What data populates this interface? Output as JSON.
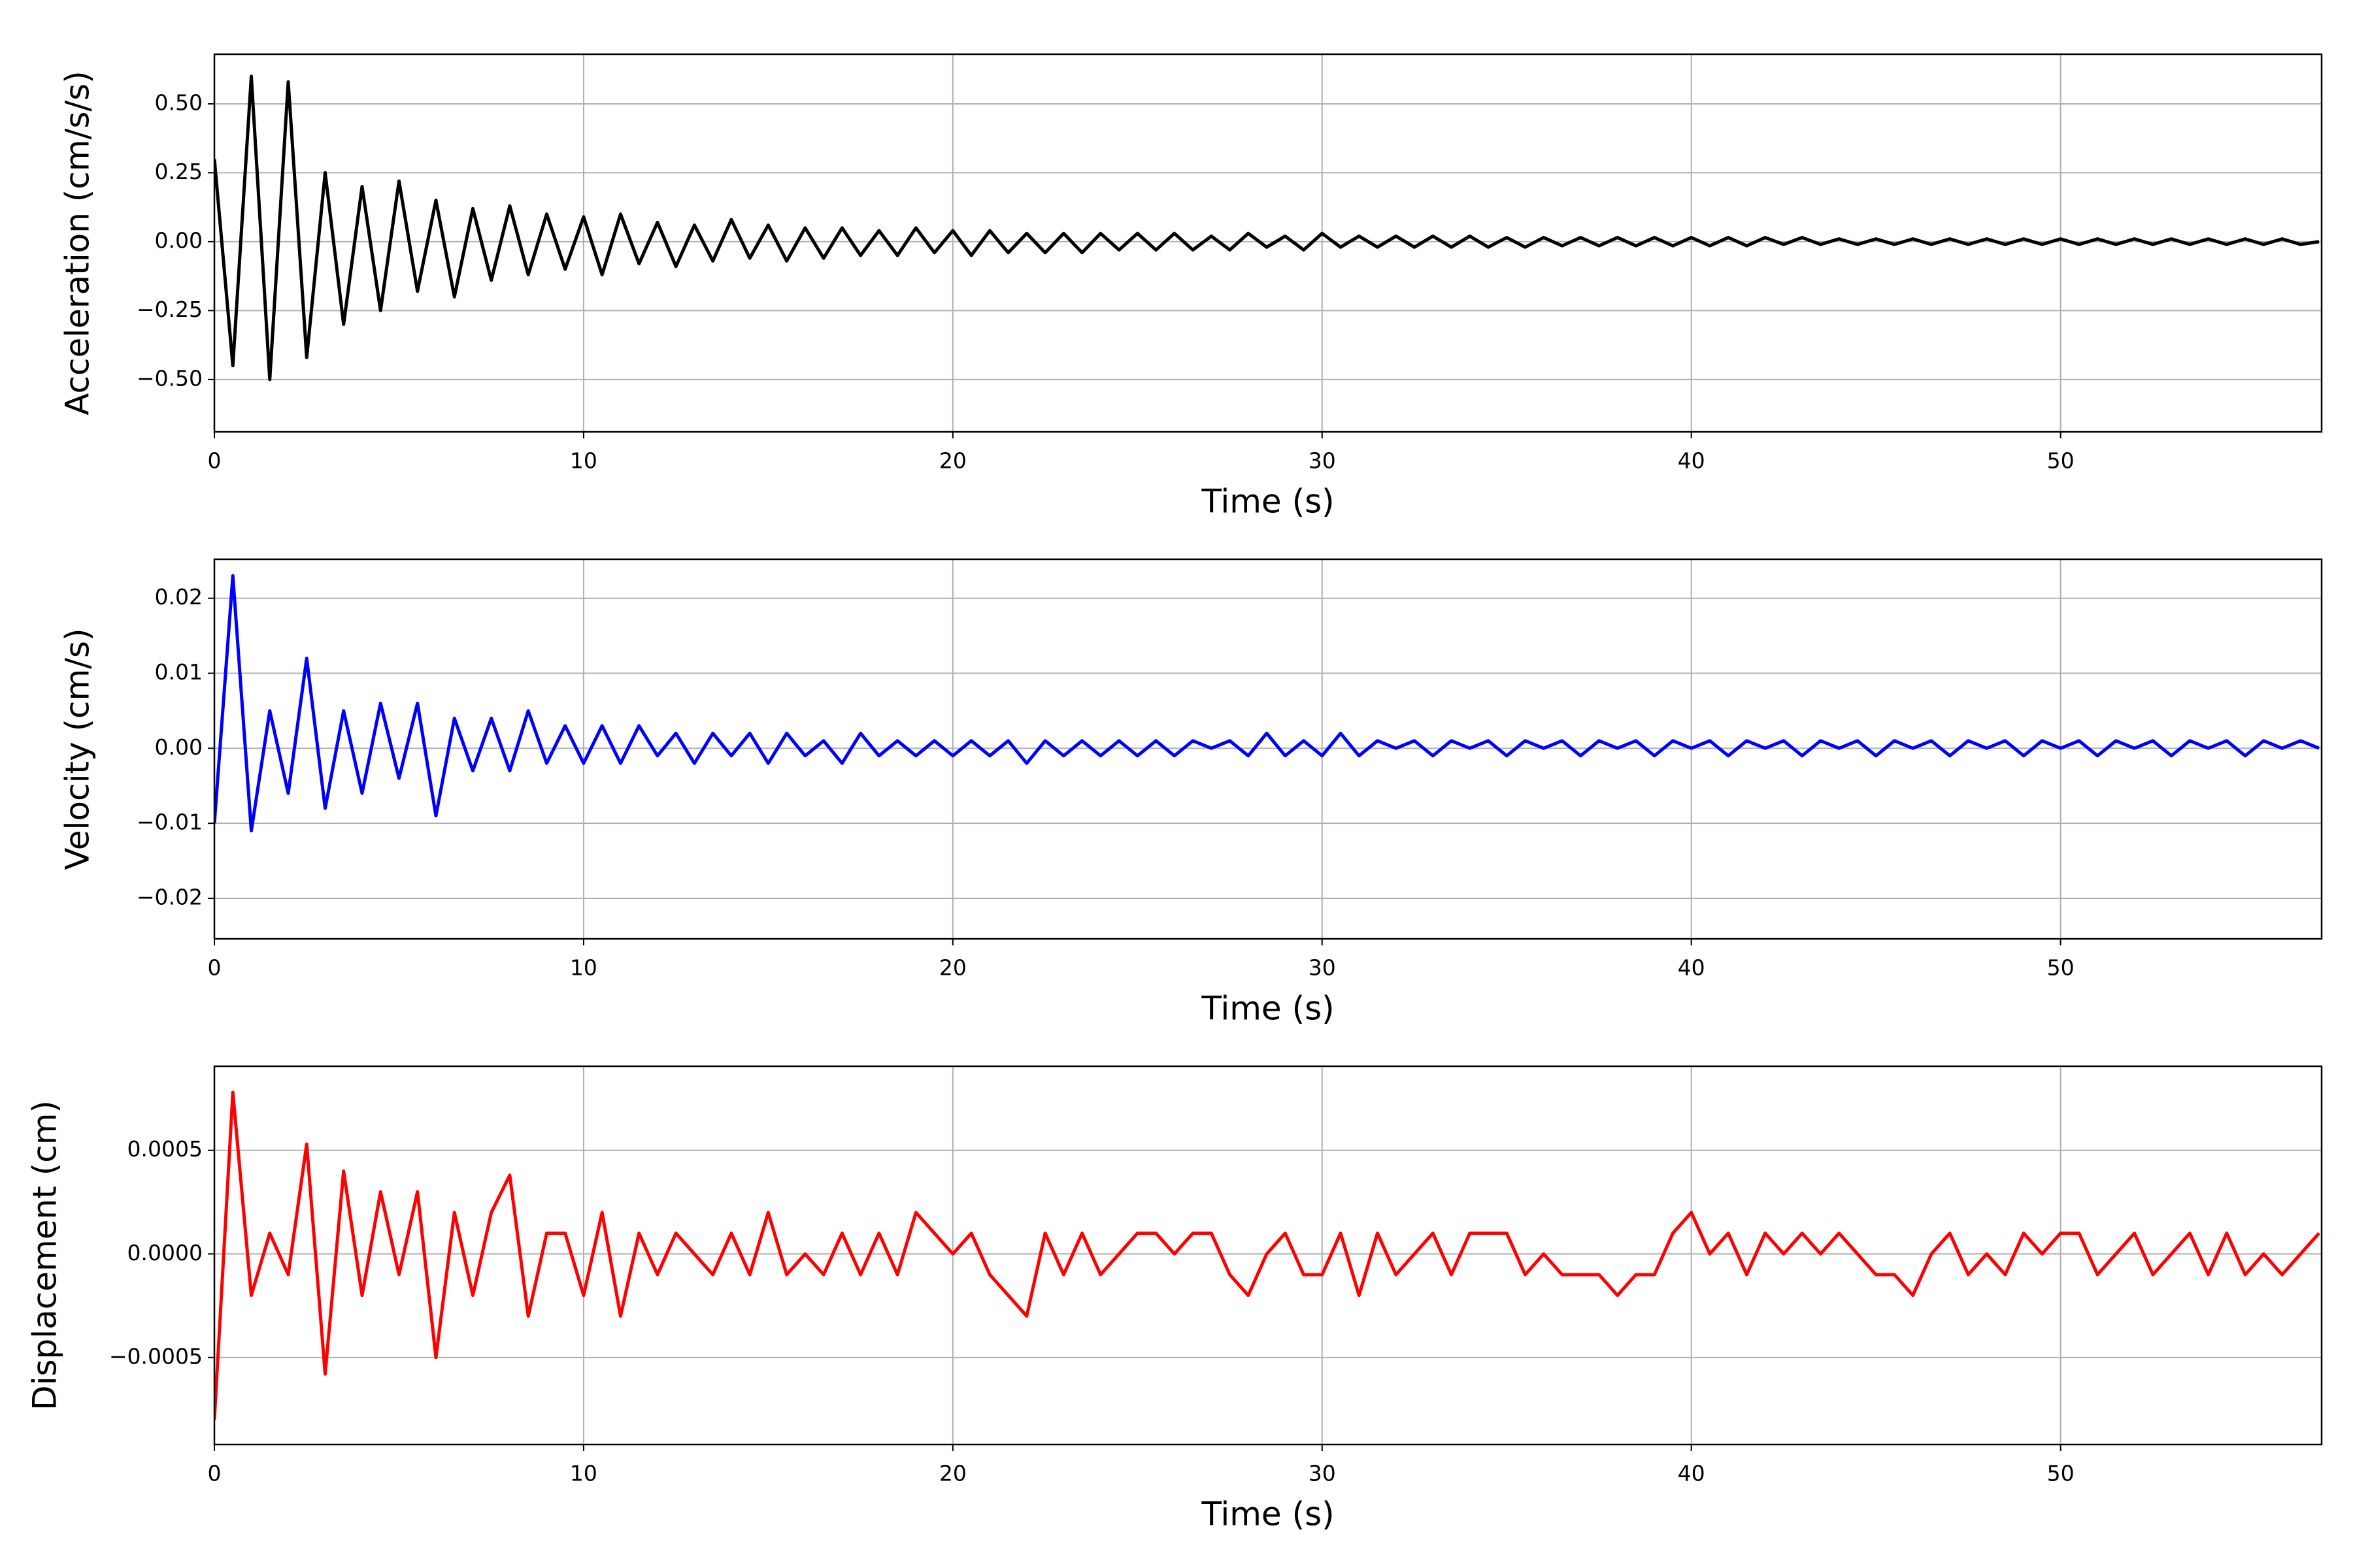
{
  "chart_data": [
    {
      "type": "line",
      "xlabel": "Time (s)",
      "ylabel": "Acceleration (cm/s/s)",
      "grid": true,
      "xlim": [
        0,
        57.07
      ],
      "xticks": [
        0,
        10,
        20,
        30,
        40,
        50
      ],
      "ylim": [
        -0.69,
        0.68
      ],
      "yticks": [
        {
          "value": -0.5,
          "label": "−0.50"
        },
        {
          "value": -0.25,
          "label": "−0.25"
        },
        {
          "value": 0,
          "label": "0.00"
        },
        {
          "value": 0.25,
          "label": "0.25"
        },
        {
          "value": 0.5,
          "label": "0.50"
        }
      ],
      "x": [
        0,
        0.5,
        1,
        1.5,
        2,
        2.5,
        3,
        3.5,
        4,
        4.5,
        5,
        5.5,
        6,
        6.5,
        7,
        7.5,
        8,
        8.5,
        9,
        9.5,
        10,
        10.5,
        11,
        11.5,
        12,
        12.5,
        13,
        13.5,
        14,
        14.5,
        15,
        15.5,
        16,
        16.5,
        17,
        17.5,
        18,
        18.5,
        19,
        19.5,
        20,
        20.5,
        21,
        21.5,
        22,
        22.5,
        23,
        23.5,
        24,
        24.5,
        25,
        25.5,
        26,
        26.5,
        27,
        27.5,
        28,
        28.5,
        29,
        29.5,
        30,
        30.5,
        31,
        31.5,
        32,
        32.5,
        33,
        33.5,
        34,
        34.5,
        35,
        35.5,
        36,
        36.5,
        37,
        37.5,
        38,
        38.5,
        39,
        39.5,
        40,
        40.5,
        41,
        41.5,
        42,
        42.5,
        43,
        43.5,
        44,
        44.5,
        45,
        45.5,
        46,
        46.5,
        47,
        47.5,
        48,
        48.5,
        49,
        49.5,
        50,
        50.5,
        51,
        51.5,
        52,
        52.5,
        53,
        53.5,
        54,
        54.5,
        55,
        55.5,
        56,
        56.5,
        57
      ],
      "series": [
        {
          "color": "#000000",
          "values": [
            0.3,
            -0.45,
            0.6,
            -0.5,
            0.58,
            -0.42,
            0.25,
            -0.3,
            0.2,
            -0.25,
            0.22,
            -0.18,
            0.15,
            -0.2,
            0.12,
            -0.14,
            0.13,
            -0.12,
            0.1,
            -0.1,
            0.09,
            -0.12,
            0.1,
            -0.08,
            0.07,
            -0.09,
            0.06,
            -0.07,
            0.08,
            -0.06,
            0.06,
            -0.07,
            0.05,
            -0.06,
            0.05,
            -0.05,
            0.04,
            -0.05,
            0.05,
            -0.04,
            0.04,
            -0.05,
            0.04,
            -0.04,
            0.03,
            -0.04,
            0.03,
            -0.04,
            0.03,
            -0.03,
            0.03,
            -0.03,
            0.03,
            -0.03,
            0.02,
            -0.03,
            0.03,
            -0.02,
            0.02,
            -0.03,
            0.03,
            -0.02,
            0.02,
            -0.02,
            0.02,
            -0.02,
            0.02,
            -0.02,
            0.02,
            -0.02,
            0.015,
            -0.02,
            0.015,
            -0.015,
            0.015,
            -0.015,
            0.015,
            -0.015,
            0.015,
            -0.015,
            0.015,
            -0.015,
            0.015,
            -0.015,
            0.015,
            -0.01,
            0.015,
            -0.01,
            0.01,
            -0.01,
            0.01,
            -0.01,
            0.01,
            -0.01,
            0.01,
            -0.01,
            0.01,
            -0.01,
            0.01,
            -0.01,
            0.01,
            -0.01,
            0.01,
            -0.01,
            0.01,
            -0.01,
            0.01,
            -0.01,
            0.01,
            -0.01,
            0.01,
            -0.01,
            0.01,
            -0.01,
            0
          ]
        }
      ]
    },
    {
      "type": "line",
      "xlabel": "Time (s)",
      "ylabel": "Velocity (cm/s)",
      "grid": true,
      "xlim": [
        0,
        57.07
      ],
      "xticks": [
        0,
        10,
        20,
        30,
        40,
        50
      ],
      "ylim": [
        -0.0254,
        0.0252
      ],
      "yticks": [
        {
          "value": -0.02,
          "label": "−0.02"
        },
        {
          "value": -0.01,
          "label": "−0.01"
        },
        {
          "value": 0,
          "label": "0.00"
        },
        0.01,
        0.02
      ],
      "x": [
        0,
        0.5,
        1,
        1.5,
        2,
        2.5,
        3,
        3.5,
        4,
        4.5,
        5,
        5.5,
        6,
        6.5,
        7,
        7.5,
        8,
        8.5,
        9,
        9.5,
        10,
        10.5,
        11,
        11.5,
        12,
        12.5,
        13,
        13.5,
        14,
        14.5,
        15,
        15.5,
        16,
        16.5,
        17,
        17.5,
        18,
        18.5,
        19,
        19.5,
        20,
        20.5,
        21,
        21.5,
        22,
        22.5,
        23,
        23.5,
        24,
        24.5,
        25,
        25.5,
        26,
        26.5,
        27,
        27.5,
        28,
        28.5,
        29,
        29.5,
        30,
        30.5,
        31,
        31.5,
        32,
        32.5,
        33,
        33.5,
        34,
        34.5,
        35,
        35.5,
        36,
        36.5,
        37,
        37.5,
        38,
        38.5,
        39,
        39.5,
        40,
        40.5,
        41,
        41.5,
        42,
        42.5,
        43,
        43.5,
        44,
        44.5,
        45,
        45.5,
        46,
        46.5,
        47,
        47.5,
        48,
        48.5,
        49,
        49.5,
        50,
        50.5,
        51,
        51.5,
        52,
        52.5,
        53,
        53.5,
        54,
        54.5,
        55,
        55.5,
        56,
        56.5,
        57
      ],
      "series": [
        {
          "color": "#0000ff",
          "values": [
            -0.01,
            0.023,
            -0.011,
            0.005,
            -0.006,
            0.012,
            -0.008,
            0.005,
            -0.006,
            0.006,
            -0.004,
            0.006,
            -0.009,
            0.004,
            -0.003,
            0.004,
            -0.003,
            0.005,
            -0.002,
            0.003,
            -0.002,
            0.003,
            -0.002,
            0.003,
            -0.001,
            0.002,
            -0.002,
            0.002,
            -0.001,
            0.002,
            -0.002,
            0.002,
            -0.001,
            0.001,
            -0.002,
            0.002,
            -0.001,
            0.001,
            -0.001,
            0.001,
            -0.001,
            0.001,
            -0.001,
            0.001,
            -0.002,
            0.001,
            -0.001,
            0.001,
            -0.001,
            0.001,
            -0.001,
            0.001,
            -0.001,
            0.001,
            0,
            0.001,
            -0.001,
            0.002,
            -0.001,
            0.001,
            -0.001,
            0.002,
            -0.001,
            0.001,
            0,
            0.001,
            -0.001,
            0.001,
            0,
            0.001,
            -0.001,
            0.001,
            0,
            0.001,
            -0.001,
            0.001,
            0,
            0.001,
            -0.001,
            0.001,
            0,
            0.001,
            -0.001,
            0.001,
            0,
            0.001,
            -0.001,
            0.001,
            0,
            0.001,
            -0.001,
            0.001,
            0,
            0.001,
            -0.001,
            0.001,
            0,
            0.001,
            -0.001,
            0.001,
            0,
            0.001,
            -0.001,
            0.001,
            0,
            0.001,
            -0.001,
            0.001,
            0,
            0.001,
            -0.001,
            0.001,
            0,
            0.001,
            0
          ]
        }
      ]
    },
    {
      "type": "line",
      "xlabel": "Time (s)",
      "ylabel": "Displacement (cm)",
      "grid": true,
      "xlim": [
        0,
        57.07
      ],
      "xticks": [
        0,
        10,
        20,
        30,
        40,
        50
      ],
      "ylim": [
        -0.00092,
        0.000906
      ],
      "yticks": [
        {
          "value": -0.0005,
          "label": "−0.0005"
        },
        {
          "value": 0,
          "label": "0.0000"
        },
        0.0005
      ],
      "x": [
        0,
        0.5,
        1,
        1.5,
        2,
        2.5,
        3,
        3.5,
        4,
        4.5,
        5,
        5.5,
        6,
        6.5,
        7,
        7.5,
        8,
        8.5,
        9,
        9.5,
        10,
        10.5,
        11,
        11.5,
        12,
        12.5,
        13,
        13.5,
        14,
        14.5,
        15,
        15.5,
        16,
        16.5,
        17,
        17.5,
        18,
        18.5,
        19,
        19.5,
        20,
        20.5,
        21,
        21.5,
        22,
        22.5,
        23,
        23.5,
        24,
        24.5,
        25,
        25.5,
        26,
        26.5,
        27,
        27.5,
        28,
        28.5,
        29,
        29.5,
        30,
        30.5,
        31,
        31.5,
        32,
        32.5,
        33,
        33.5,
        34,
        34.5,
        35,
        35.5,
        36,
        36.5,
        37,
        37.5,
        38,
        38.5,
        39,
        39.5,
        40,
        40.5,
        41,
        41.5,
        42,
        42.5,
        43,
        43.5,
        44,
        44.5,
        45,
        45.5,
        46,
        46.5,
        47,
        47.5,
        48,
        48.5,
        49,
        49.5,
        50,
        50.5,
        51,
        51.5,
        52,
        52.5,
        53,
        53.5,
        54,
        54.5,
        55,
        55.5,
        56,
        56.5,
        57
      ],
      "series": [
        {
          "color": "#ff0000",
          "values": [
            -0.0008,
            0.00078,
            -0.0002,
            0.0001,
            -0.0001,
            0.00053,
            -0.00058,
            0.0004,
            -0.0002,
            0.0003,
            -0.0001,
            0.0003,
            -0.0005,
            0.0002,
            -0.0002,
            0.0002,
            0.00038,
            -0.0003,
            0.0001,
            0.0001,
            -0.0002,
            0.0002,
            -0.0003,
            0.0001,
            -0.0001,
            0.0001,
            0,
            -0.0001,
            0.0001,
            -0.0001,
            0.0002,
            -0.0001,
            0,
            -0.0001,
            0.0001,
            -0.0001,
            0.0001,
            -0.0001,
            0.0002,
            0.0001,
            0,
            0.0001,
            -0.0001,
            -0.0002,
            -0.0003,
            0.0001,
            -0.0001,
            0.0001,
            -0.0001,
            0,
            0.0001,
            0.0001,
            0,
            0.0001,
            0.0001,
            -0.0001,
            -0.0002,
            0,
            0.0001,
            -0.0001,
            -0.0001,
            0.0001,
            -0.0002,
            0.0001,
            -0.0001,
            0,
            0.0001,
            -0.0001,
            0.0001,
            0.0001,
            0.0001,
            -0.0001,
            0,
            -0.0001,
            -0.0001,
            -0.0001,
            -0.0002,
            -0.0001,
            -0.0001,
            0.0001,
            0.0002,
            0,
            0.0001,
            -0.0001,
            0.0001,
            0,
            0.0001,
            0,
            0.0001,
            0,
            -0.0001,
            -0.0001,
            -0.0002,
            0,
            0.0001,
            -0.0001,
            0,
            -0.0001,
            0.0001,
            0,
            0.0001,
            0.0001,
            -0.0001,
            0,
            0.0001,
            -0.0001,
            0,
            0.0001,
            -0.0001,
            0.0001,
            -0.0001,
            0,
            -0.0001,
            0,
            0.0001
          ]
        }
      ]
    }
  ]
}
